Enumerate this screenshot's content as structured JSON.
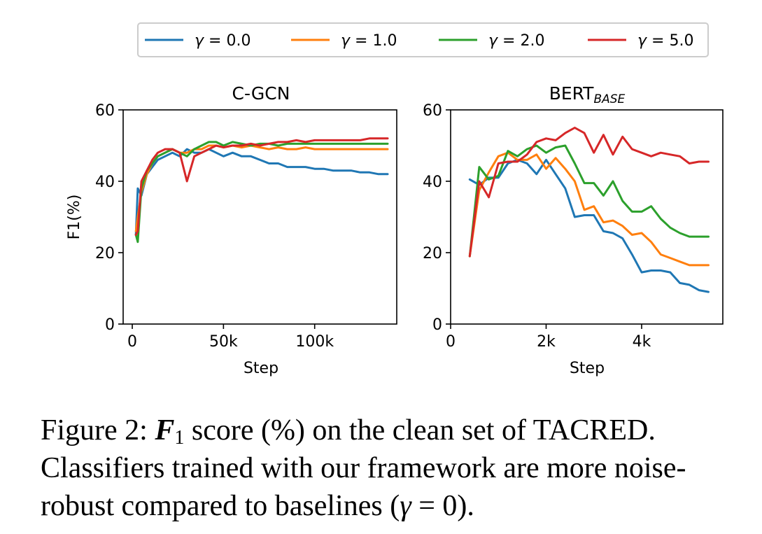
{
  "legend": {
    "placement": "top-center",
    "entries": [
      {
        "symbol": "γ",
        "eq": " = ",
        "value": "0.0",
        "color": "#1f77b4"
      },
      {
        "symbol": "γ",
        "eq": " = ",
        "value": "1.0",
        "color": "#ff7f0e"
      },
      {
        "symbol": "γ",
        "eq": " = ",
        "value": "2.0",
        "color": "#2ca02c"
      },
      {
        "symbol": "γ",
        "eq": " = ",
        "value": "5.0",
        "color": "#d62728"
      }
    ]
  },
  "chart_data": [
    {
      "type": "line",
      "title": "C-GCN",
      "xlabel": "Step",
      "ylabel": "F1(%)",
      "xlim": [
        -5000,
        145000
      ],
      "ylim": [
        0,
        60
      ],
      "xticks": [
        0,
        50000,
        100000
      ],
      "xticklabels": [
        "0",
        "50k",
        "100k"
      ],
      "yticks": [
        0,
        20,
        40,
        60
      ],
      "yticklabels": [
        "0",
        "20",
        "40",
        "60"
      ],
      "grid": false,
      "x": [
        2000,
        3000,
        5000,
        8000,
        11000,
        14000,
        18000,
        22000,
        26000,
        30000,
        34000,
        38000,
        42000,
        46000,
        50000,
        55000,
        60000,
        65000,
        70000,
        75000,
        80000,
        85000,
        90000,
        95000,
        100000,
        105000,
        110000,
        115000,
        120000,
        125000,
        130000,
        135000,
        140000
      ],
      "series": [
        {
          "name": "γ = 0.0",
          "color": "#1f77b4",
          "values": [
            25,
            38,
            36,
            42,
            44,
            46,
            47,
            48,
            47,
            49,
            48,
            48,
            49,
            48,
            47,
            48,
            47,
            47,
            46,
            45,
            45,
            44,
            44,
            44,
            43.5,
            43.5,
            43,
            43,
            43,
            42.5,
            42.5,
            42,
            42
          ]
        },
        {
          "name": "γ = 1.0",
          "color": "#ff7f0e",
          "values": [
            26,
            30,
            37,
            42,
            45,
            47,
            48,
            49,
            48,
            48,
            49,
            49,
            50,
            50,
            49.5,
            50,
            49.5,
            50,
            49.5,
            49,
            49.5,
            49,
            49,
            49.5,
            49,
            49,
            49,
            49,
            49,
            49,
            49,
            49,
            49
          ]
        },
        {
          "name": "γ = 2.0",
          "color": "#2ca02c",
          "values": [
            25,
            23,
            38,
            43,
            45,
            47,
            48,
            49,
            48,
            47,
            49,
            50,
            51,
            51,
            50,
            51,
            50.5,
            50,
            50.5,
            50.5,
            50,
            50.5,
            50.5,
            50.5,
            50.5,
            50.5,
            50.5,
            50.5,
            50.5,
            50.5,
            50.5,
            50.5,
            50.5
          ]
        },
        {
          "name": "γ = 5.0",
          "color": "#d62728",
          "values": [
            25,
            26,
            40,
            43,
            46,
            48,
            49,
            49,
            48,
            40,
            47,
            48,
            49,
            50,
            49.5,
            50,
            50,
            50.5,
            50,
            50.5,
            51,
            51,
            51.5,
            51,
            51.5,
            51.5,
            51.5,
            51.5,
            51.5,
            51.5,
            52,
            52,
            52
          ]
        }
      ]
    },
    {
      "type": "line",
      "title": "BERT",
      "title_sub": "BASE",
      "xlabel": "Step",
      "ylabel": "",
      "xlim": [
        0,
        5700
      ],
      "ylim": [
        0,
        60
      ],
      "xticks": [
        0,
        2000,
        4000
      ],
      "xticklabels": [
        "0",
        "2k",
        "4k"
      ],
      "yticks": [
        0,
        20,
        40,
        60
      ],
      "yticklabels": [
        "0",
        "20",
        "40",
        "60"
      ],
      "grid": false,
      "x": [
        400,
        600,
        800,
        1000,
        1200,
        1400,
        1600,
        1800,
        2000,
        2200,
        2400,
        2600,
        2800,
        3000,
        3200,
        3400,
        3600,
        3800,
        4000,
        4200,
        4400,
        4600,
        4800,
        5000,
        5200,
        5400
      ],
      "series": [
        {
          "name": "γ = 0.0",
          "color": "#1f77b4",
          "values": [
            40.5,
            39,
            41,
            41,
            45,
            46,
            45,
            42,
            46,
            42,
            38,
            30,
            30.5,
            30.5,
            26,
            25.5,
            24,
            19.5,
            14.5,
            15,
            15,
            14.5,
            11.5,
            11,
            9.5,
            9
          ]
        },
        {
          "name": "γ = 1.0",
          "color": "#ff7f0e",
          "values": [
            19,
            37.5,
            42.5,
            47,
            48,
            46,
            46,
            47.5,
            43.5,
            46.5,
            43.5,
            40,
            32,
            33,
            28.5,
            29,
            27.5,
            25,
            25.5,
            23,
            19.5,
            18.5,
            17.5,
            16.5,
            16.5,
            16.5
          ]
        },
        {
          "name": "γ = 2.0",
          "color": "#2ca02c",
          "values": [
            19,
            44,
            40.5,
            41.5,
            48.5,
            47,
            49,
            50,
            48,
            49.5,
            50,
            45,
            39.5,
            39.5,
            36,
            40,
            34.5,
            31.5,
            31.5,
            33,
            29.5,
            27,
            25.5,
            24.5,
            24.5,
            24.5
          ]
        },
        {
          "name": "γ = 5.0",
          "color": "#d62728",
          "values": [
            19,
            40,
            35.5,
            45,
            45.5,
            45.5,
            47.5,
            51,
            52,
            51.5,
            53.5,
            55,
            53.5,
            48,
            53,
            47.5,
            52.5,
            49,
            48,
            47,
            48,
            47.5,
            47,
            45,
            45.5,
            45.5
          ]
        }
      ]
    }
  ],
  "caption": {
    "line1": {
      "prefix": "Figure 2: ",
      "var": "F",
      "sub": "1",
      "rest": " score (%) on the clean set of TACRED."
    },
    "line2": "Classifiers trained with our framework are more noise-",
    "line3": {
      "before": "robust compared to baselines (",
      "var": "γ",
      "after": " = 0)."
    }
  }
}
